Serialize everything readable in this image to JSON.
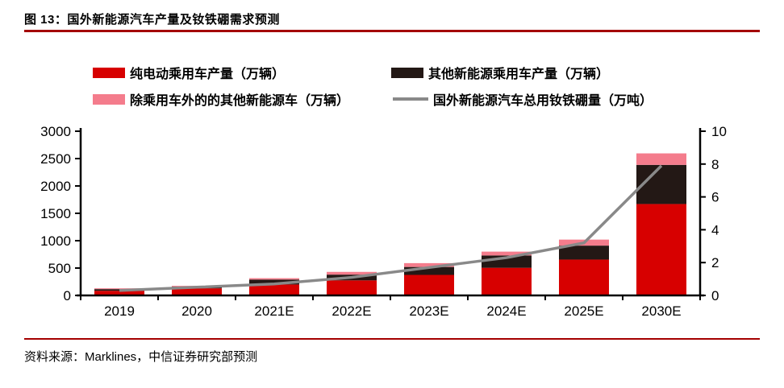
{
  "header": {
    "figure_label": "图 13：国外新能源汽车产量及钕铁硼需求预测"
  },
  "colors": {
    "rule_red": "#a40000",
    "bar_red": "#d70000",
    "bar_dark": "#231815",
    "bar_pink": "#f47c8c",
    "line_gray": "#898989",
    "axis_black": "#000000"
  },
  "chart_data": {
    "type": "bar",
    "subtype": "stacked-bar-with-line",
    "categories": [
      "2019",
      "2020",
      "2021E",
      "2022E",
      "2023E",
      "2024E",
      "2025E",
      "2030E"
    ],
    "series": [
      {
        "name": "纯电动乘用车产量（万辆）",
        "type": "bar",
        "axis": "left",
        "color": "#d70000",
        "values": [
          85,
          130,
          200,
          275,
          375,
          505,
          655,
          1670
        ]
      },
      {
        "name": "其他新能源乘用车产量（万辆）",
        "type": "bar",
        "axis": "left",
        "color": "#231815",
        "values": [
          30,
          30,
          90,
          105,
          145,
          225,
          255,
          715
        ]
      },
      {
        "name": "除乘用车外的的其他新能源车（万辆）",
        "type": "bar",
        "axis": "left",
        "color": "#f47c8c",
        "values": [
          15,
          15,
          25,
          50,
          70,
          70,
          110,
          210
        ]
      },
      {
        "name": "国外新能源汽车总用钕铁硼量（万吨）",
        "type": "line",
        "axis": "right",
        "color": "#898989",
        "values": [
          0.3,
          0.5,
          0.7,
          1.1,
          1.7,
          2.3,
          3.2,
          7.9
        ]
      }
    ],
    "stacked": true,
    "ylim_left": [
      0,
      3000
    ],
    "yticks_left": [
      0,
      500,
      1000,
      1500,
      2000,
      2500,
      3000
    ],
    "ylim_right": [
      0,
      10
    ],
    "yticks_right": [
      0,
      2,
      4,
      6,
      8,
      10
    ],
    "grid": false,
    "legend_position": "top"
  },
  "footer": {
    "source": "资料来源：Marklines，中信证券研究部预测"
  }
}
